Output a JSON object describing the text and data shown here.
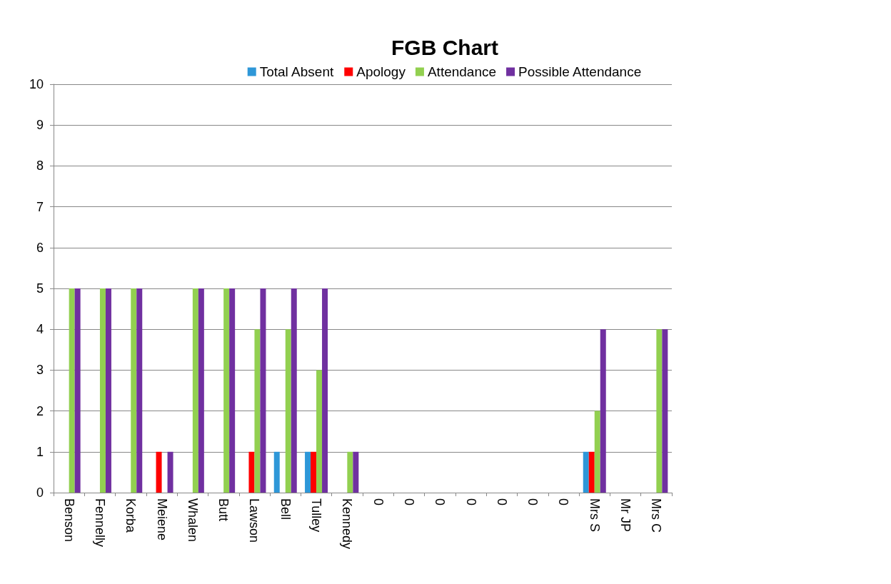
{
  "chart_data": {
    "type": "bar",
    "title": "FGB Chart",
    "categories": [
      "Benson",
      "Fennelly",
      "Korba",
      "Meiene",
      "Whalen",
      "Butt",
      "Lawson",
      "Bell",
      "Tulley",
      "Kennedy",
      "0",
      "0",
      "0",
      "0",
      "0",
      "0",
      "0",
      "Mrs S",
      "Mr JP",
      "Mrs C"
    ],
    "series": [
      {
        "name": "Total Absent",
        "color": "#2e97d8",
        "values": [
          0,
          0,
          0,
          0,
          0,
          0,
          0,
          1,
          1,
          0,
          0,
          0,
          0,
          0,
          0,
          0,
          0,
          1,
          0,
          0
        ]
      },
      {
        "name": "Apology",
        "color": "#ff0000",
        "values": [
          0,
          0,
          0,
          1,
          0,
          0,
          1,
          0,
          1,
          0,
          0,
          0,
          0,
          0,
          0,
          0,
          0,
          1,
          0,
          0
        ]
      },
      {
        "name": "Attendance",
        "color": "#92d050",
        "values": [
          5,
          5,
          5,
          0,
          5,
          5,
          4,
          4,
          3,
          1,
          0,
          0,
          0,
          0,
          0,
          0,
          0,
          2,
          0,
          4
        ]
      },
      {
        "name": "Possible Attendance",
        "color": "#7030a0",
        "values": [
          5,
          5,
          5,
          1,
          5,
          5,
          5,
          5,
          5,
          1,
          0,
          0,
          0,
          0,
          0,
          0,
          0,
          4,
          0,
          4
        ]
      }
    ],
    "ylim": [
      0,
      10
    ],
    "yticks": [
      0,
      1,
      2,
      3,
      4,
      5,
      6,
      7,
      8,
      9,
      10
    ],
    "grid": "y",
    "legend": "top"
  }
}
